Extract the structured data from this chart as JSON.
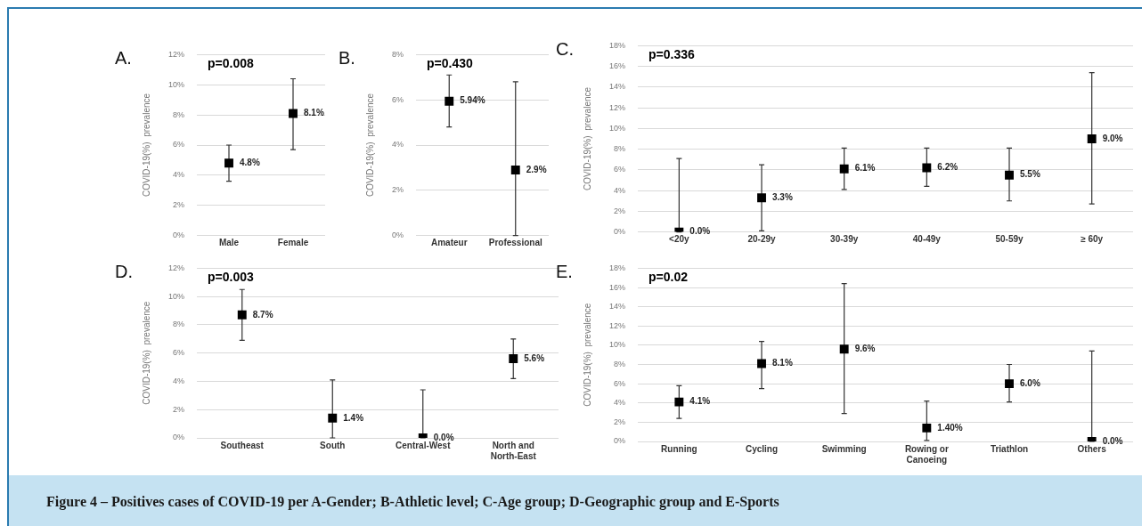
{
  "chart_data": [
    {
      "type": "scatter",
      "title": "A.",
      "ylabel": "COVID-19(%)  prevalence",
      "categories": [
        "Male",
        "Female"
      ],
      "values": [
        4.8,
        8.1
      ],
      "errors": [
        [
          3.6,
          6.0
        ],
        [
          5.7,
          10.4
        ]
      ],
      "value_labels": [
        "4.8%",
        "8.1%"
      ],
      "annotations": [
        "p=0.008"
      ],
      "color": "#000000",
      "marker": "square",
      "grid": "y",
      "ylim": [
        0,
        12
      ],
      "yticks": [
        {
          "value": 0,
          "label": "0%"
        },
        {
          "value": 2,
          "label": "2%"
        },
        {
          "value": 4,
          "label": "4%"
        },
        {
          "value": 6,
          "label": "6%"
        },
        {
          "value": 8,
          "label": "8%"
        },
        {
          "value": 10,
          "label": "10%"
        },
        {
          "value": 12,
          "label": "12%"
        }
      ]
    },
    {
      "type": "scatter",
      "title": "B.",
      "ylabel": "COVID-19(%)  prevalence",
      "categories": [
        "Amateur",
        "Professional"
      ],
      "values": [
        5.94,
        2.9
      ],
      "errors": [
        [
          4.8,
          7.1
        ],
        [
          0,
          6.8
        ]
      ],
      "value_labels": [
        "5.94%",
        "2.9%"
      ],
      "annotations": [
        "p=0.430"
      ],
      "color": "#000000",
      "marker": "square",
      "grid": "y",
      "ylim": [
        0,
        8
      ],
      "yticks": [
        {
          "value": 0,
          "label": "0%"
        },
        {
          "value": 2,
          "label": "2%"
        },
        {
          "value": 4,
          "label": "4%"
        },
        {
          "value": 6,
          "label": "6%"
        },
        {
          "value": 8,
          "label": "8%"
        }
      ]
    },
    {
      "type": "scatter",
      "title": "C.",
      "ylabel": "COVID-19(%)  prevalence",
      "categories": [
        "<20y",
        "20-29y",
        "30-39y",
        "40-49y",
        "50-59y",
        "≥ 60y"
      ],
      "values": [
        0.0,
        3.3,
        6.1,
        6.2,
        5.5,
        9.0
      ],
      "errors": [
        [
          0,
          7.1
        ],
        [
          0.1,
          6.5
        ],
        [
          4.1,
          8.1
        ],
        [
          4.4,
          8.1
        ],
        [
          3.0,
          8.1
        ],
        [
          2.7,
          15.4
        ]
      ],
      "value_labels": [
        "0.0%",
        "3.3%",
        "6.1%",
        "6.2%",
        "5.5%",
        "9.0%"
      ],
      "annotations": [
        "p=0.336"
      ],
      "color": "#000000",
      "marker": "square",
      "grid": "y",
      "ylim": [
        0,
        18
      ],
      "yticks": [
        {
          "value": 0,
          "label": "0%"
        },
        {
          "value": 2,
          "label": "2%"
        },
        {
          "value": 4,
          "label": "4%"
        },
        {
          "value": 6,
          "label": "6%"
        },
        {
          "value": 8,
          "label": "8%"
        },
        {
          "value": 10,
          "label": "10%"
        },
        {
          "value": 12,
          "label": "12%"
        },
        {
          "value": 14,
          "label": "14%"
        },
        {
          "value": 16,
          "label": "16%"
        },
        {
          "value": 18,
          "label": "18%"
        }
      ]
    },
    {
      "type": "scatter",
      "title": "D.",
      "ylabel": "COVID-19(%)  prevalence",
      "categories": [
        "Southeast",
        "South",
        "Central-West",
        "North and North-East"
      ],
      "values": [
        8.7,
        1.4,
        0.0,
        5.6
      ],
      "errors": [
        [
          6.9,
          10.5
        ],
        [
          0,
          4.1
        ],
        [
          0,
          3.4
        ],
        [
          4.2,
          7.0
        ]
      ],
      "value_labels": [
        "8.7%",
        "1.4%",
        "0.0%",
        "5.6%"
      ],
      "annotations": [
        "p=0.003"
      ],
      "color": "#000000",
      "marker": "square",
      "grid": "y",
      "ylim": [
        0,
        12
      ],
      "yticks": [
        {
          "value": 0,
          "label": "0%"
        },
        {
          "value": 2,
          "label": "2%"
        },
        {
          "value": 4,
          "label": "4%"
        },
        {
          "value": 6,
          "label": "6%"
        },
        {
          "value": 8,
          "label": "8%"
        },
        {
          "value": 10,
          "label": "10%"
        },
        {
          "value": 12,
          "label": "12%"
        }
      ]
    },
    {
      "type": "scatter",
      "title": "E.",
      "ylabel": "COVID-19(%)  prevalence",
      "categories": [
        "Running",
        "Cycling",
        "Swimming",
        "Rowing or Canoeing",
        "Triathlon",
        "Others"
      ],
      "values": [
        4.1,
        8.1,
        9.6,
        1.4,
        6.0,
        0.0
      ],
      "errors": [
        [
          2.4,
          5.8
        ],
        [
          5.5,
          10.4
        ],
        [
          2.9,
          16.4
        ],
        [
          0.1,
          4.2
        ],
        [
          4.1,
          8.0
        ],
        [
          0,
          9.4
        ]
      ],
      "value_labels": [
        "4.1%",
        "8.1%",
        "9.6%",
        "1.40%",
        "6.0%",
        "0.0%"
      ],
      "annotations": [
        "p=0.02"
      ],
      "color": "#000000",
      "marker": "square",
      "grid": "y",
      "ylim": [
        0,
        18
      ],
      "yticks": [
        {
          "value": 0,
          "label": "0%"
        },
        {
          "value": 2,
          "label": "2%"
        },
        {
          "value": 4,
          "label": "4%"
        },
        {
          "value": 6,
          "label": "6%"
        },
        {
          "value": 8,
          "label": "8%"
        },
        {
          "value": 10,
          "label": "10%"
        },
        {
          "value": 12,
          "label": "12%"
        },
        {
          "value": 14,
          "label": "14%"
        },
        {
          "value": 16,
          "label": "16%"
        },
        {
          "value": 18,
          "label": "18%"
        }
      ]
    },
    {
      "type": "other",
      "title": "Figure 4 – Positives cases of COVID-19 per A-Gender; B-Athletic level; C-Age group; D-Geographic group and E-Sports"
    }
  ]
}
